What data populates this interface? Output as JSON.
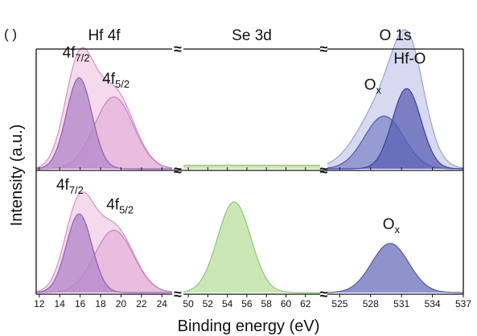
{
  "chart_data": {
    "type": "area",
    "title": "",
    "xlabel": "Binding energy (eV)",
    "ylabel": "Intensity (a.u.)",
    "panel_letter": "( )",
    "axis_break_symbol": "≈",
    "regions": [
      {
        "name": "Hf 4f",
        "xlim": [
          11.7,
          25
        ],
        "ticks": [
          12,
          14,
          16,
          18,
          20,
          22,
          24
        ]
      },
      {
        "name": "Se 3d",
        "xlim": [
          49.5,
          63.5
        ],
        "ticks": [
          50,
          52,
          54,
          56,
          58,
          60,
          62
        ]
      },
      {
        "name": "O 1s",
        "xlim": [
          523.8,
          537
        ],
        "ticks": [
          525,
          528,
          531,
          534,
          537
        ]
      }
    ],
    "rows": [
      {
        "labels": [
          {
            "region": 0,
            "base": "4f",
            "sub": "7/2",
            "x": 15.6,
            "y": 0.93
          },
          {
            "region": 0,
            "base": "4f",
            "sub": "5/2",
            "x": 19.5,
            "y": 0.71
          },
          {
            "region": 2,
            "base": "O",
            "sub": "x",
            "x": 528.2,
            "y": 0.66
          },
          {
            "region": 2,
            "base": "Hf-O",
            "sub": "",
            "x": 531.8,
            "y": 0.88
          }
        ],
        "series": [
          {
            "region": 0,
            "role": "envelope",
            "peaks": [
              {
                "c": 15.9,
                "a": 0.86,
                "w": 1.4
              },
              {
                "c": 19.3,
                "a": 0.65,
                "w": 1.9
              }
            ]
          },
          {
            "region": 0,
            "role": "component",
            "peaks": [
              {
                "c": 19.3,
                "a": 0.6,
                "w": 1.9
              }
            ]
          },
          {
            "region": 0,
            "role": "component",
            "peaks": [
              {
                "c": 15.9,
                "a": 0.76,
                "w": 1.25
              }
            ]
          },
          {
            "region": 1,
            "role": "flat",
            "peaks": [
              {
                "c": 56.5,
                "a": 0.03,
                "w": 30
              }
            ]
          },
          {
            "region": 2,
            "role": "envelope",
            "peaks": [
              {
                "c": 529.5,
                "a": 0.58,
                "w": 2.5
              },
              {
                "c": 531.7,
                "a": 0.74,
                "w": 1.5
              }
            ]
          },
          {
            "region": 2,
            "role": "component",
            "peaks": [
              {
                "c": 529.3,
                "a": 0.44,
                "w": 1.9
              }
            ]
          },
          {
            "region": 2,
            "role": "component",
            "peaks": [
              {
                "c": 531.5,
                "a": 0.67,
                "w": 1.4
              }
            ]
          }
        ]
      },
      {
        "labels": [
          {
            "region": 0,
            "base": "4f",
            "sub": "7/2",
            "x": 15.0,
            "y": 0.94
          },
          {
            "region": 0,
            "base": "4f",
            "sub": "5/2",
            "x": 19.9,
            "y": 0.76
          },
          {
            "region": 2,
            "base": "O",
            "sub": "x",
            "x": 530.0,
            "y": 0.58
          }
        ],
        "series": [
          {
            "region": 0,
            "role": "envelope",
            "peaks": [
              {
                "c": 15.9,
                "a": 0.78,
                "w": 1.4
              },
              {
                "c": 19.3,
                "a": 0.6,
                "w": 1.9
              }
            ]
          },
          {
            "region": 0,
            "role": "component",
            "peaks": [
              {
                "c": 19.3,
                "a": 0.57,
                "w": 1.9
              }
            ]
          },
          {
            "region": 0,
            "role": "component",
            "peaks": [
              {
                "c": 15.9,
                "a": 0.72,
                "w": 1.25
              }
            ]
          },
          {
            "region": 1,
            "role": "peak",
            "peaks": [
              {
                "c": 54.7,
                "a": 0.83,
                "w": 1.7
              }
            ]
          },
          {
            "region": 2,
            "role": "peak",
            "peaks": [
              {
                "c": 529.9,
                "a": 0.45,
                "w": 1.8
              }
            ]
          }
        ]
      }
    ],
    "colors": {
      "hf_envelope_fill": "#f3d6ea",
      "hf_envelope_line": "#d890c6",
      "hf_component_fill": "#e4b3d8",
      "hf_component_line": "#cc82bf",
      "hf_main_fill": "#b58acb",
      "hf_main_line": "#8d62b4",
      "se_fill": "#c9e6b2",
      "se_line": "#8fc66f",
      "o_envelope_fill": "#d3d5ee",
      "o_envelope_line": "#9aa0d8",
      "o_component_fill": "#7a80c6",
      "o_component_line": "#5559a8",
      "o_main_fill": "#5a60b3",
      "o_main_line": "#3d419a",
      "axis": "#111111"
    }
  }
}
